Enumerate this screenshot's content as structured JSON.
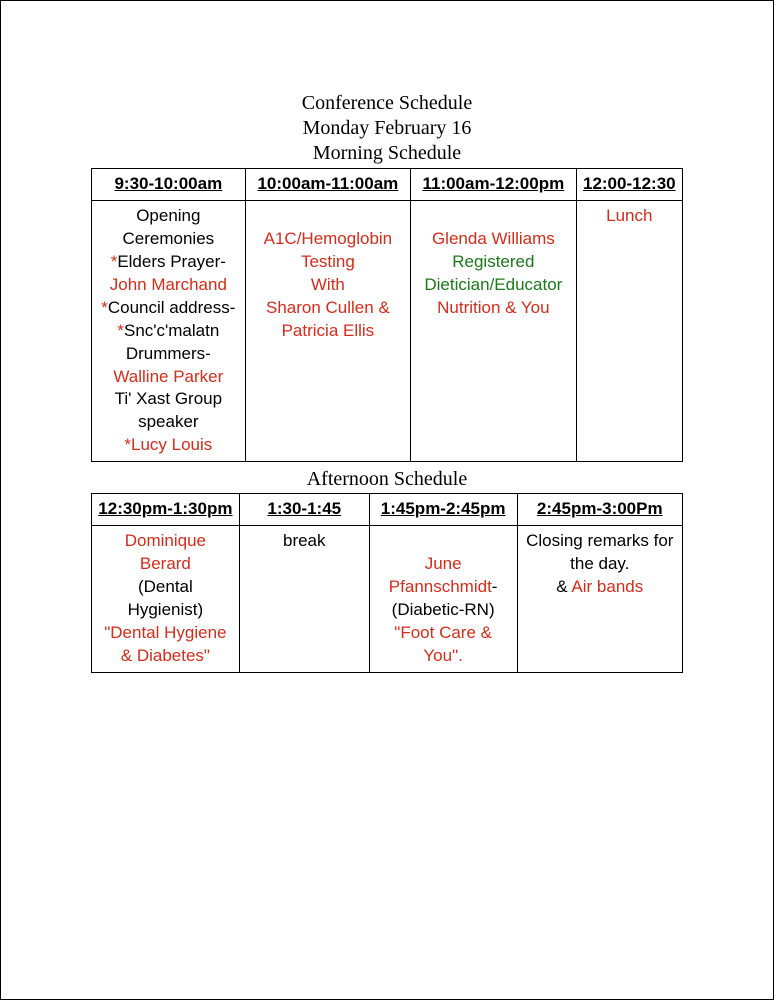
{
  "title": {
    "line1": "Conference Schedule",
    "line2": "Monday February 16",
    "line3": "Morning Schedule"
  },
  "morning": {
    "headers": [
      "9:30-10:00am",
      "10:00am-11:00am",
      "11:00am-12:00pm",
      "12:00-12:30"
    ],
    "col1": {
      "opening": "Opening Ceremonies",
      "ast1": "*",
      "elders_prayer_label": "Elders Prayer-",
      "john": "John Marchand",
      "ast2": "*",
      "council_label": "Council address-",
      "ast3": "*",
      "snc": "Snc'c'malatn",
      "drummers_label": "Drummers-",
      "walline": "Walline Parker",
      "tixast": "Ti' Xast Group speaker",
      "ast4": "*",
      "lucy": "Lucy Louis"
    },
    "col2": {
      "l1": "A1C/Hemoglobin",
      "l2": "Testing",
      "l3": "With",
      "l4": "Sharon Cullen & Patricia Ellis"
    },
    "col3": {
      "name": "Glenda Williams",
      "role1": "Registered",
      "role2": "Dietician/Educator",
      "topic": "Nutrition & You"
    },
    "col4": {
      "lunch": "Lunch"
    }
  },
  "afternoon_title": "Afternoon Schedule",
  "afternoon": {
    "headers": [
      "12:30pm-1:30pm",
      "1:30-1:45",
      "1:45pm-2:45pm",
      "2:45pm-3:00Pm"
    ],
    "col1": {
      "name": "Dominique Berard",
      "role": "(Dental Hygienist)",
      "topic": "\"Dental Hygiene & Diabetes\""
    },
    "col2": {
      "text": "break"
    },
    "col3": {
      "name": "June Pfannschmidt",
      "dash": "-",
      "role": "(Diabetic-RN)",
      "topic": "\"Foot Care & You\"."
    },
    "col4": {
      "text1": "Closing remarks for the day.",
      "amp": "& ",
      "airbands": "Air bands"
    }
  },
  "colors": {
    "red": "#d62c1a",
    "green": "#1a7a1a",
    "black": "#000000",
    "background": "#ffffff",
    "border": "#000000"
  },
  "fonts": {
    "title_family": "Times New Roman",
    "body_family": "Comic Sans MS",
    "title_size_pt": 15,
    "cell_size_pt": 13
  }
}
